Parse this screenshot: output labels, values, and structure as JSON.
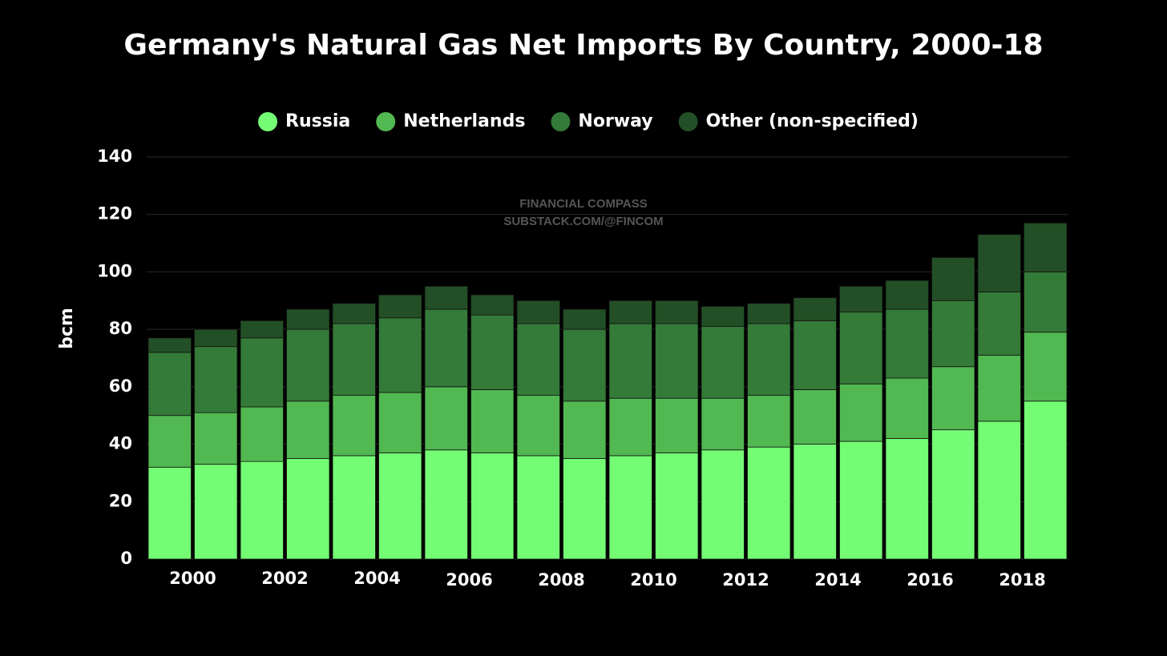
{
  "chart_data": {
    "type": "stacked_bar",
    "title": "Germany's Natural Gas Net Imports By Country, 2000-18",
    "y_label": "bcm",
    "annotations": [
      "FINANCIAL COMPASS",
      "SUBSTACK.COM/@FINCOM"
    ],
    "categories": [
      "2000",
      null,
      "2002",
      null,
      "2004",
      null,
      "2006",
      null,
      "2008",
      null,
      "2010",
      null,
      "2012",
      null,
      "2014",
      null,
      "2016",
      null,
      "2018",
      null
    ],
    "series": [
      {
        "name": "Russia",
        "color": "#74fc74",
        "values": [
          32,
          33,
          34,
          35,
          36,
          37,
          38,
          37,
          36,
          35,
          36,
          37,
          38,
          39,
          40,
          41,
          42,
          45,
          48,
          55
        ]
      },
      {
        "name": "Netherlands",
        "color": "#52b852",
        "values": [
          18,
          18,
          19,
          20,
          21,
          21,
          22,
          22,
          21,
          20,
          20,
          19,
          18,
          18,
          19,
          20,
          21,
          22,
          23,
          24
        ]
      },
      {
        "name": "Norway",
        "color": "#347a38",
        "values": [
          22,
          23,
          24,
          25,
          25,
          26,
          27,
          26,
          25,
          25,
          26,
          26,
          25,
          25,
          24,
          25,
          24,
          23,
          22,
          21
        ]
      },
      {
        "name": "Other (non-specified)",
        "color": "#234f26",
        "values": [
          5,
          6,
          6,
          7,
          7,
          8,
          8,
          7,
          8,
          7,
          8,
          8,
          7,
          7,
          8,
          9,
          10,
          15,
          20,
          17
        ]
      }
    ],
    "ylim": [
      0,
      140
    ],
    "yticks": [
      0,
      20,
      40,
      60,
      80,
      100,
      120,
      140
    ],
    "grid": true,
    "legend": "top"
  }
}
